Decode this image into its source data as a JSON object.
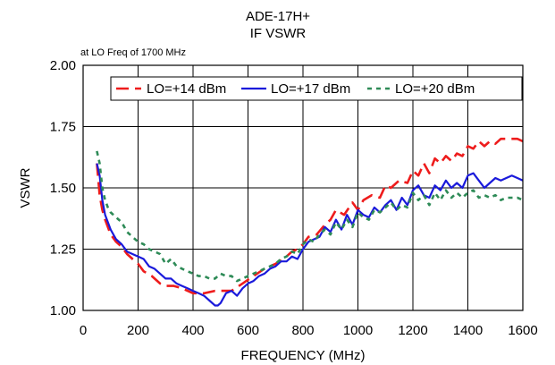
{
  "chart_data": {
    "type": "line",
    "title": [
      "ADE-17H+",
      "IF VSWR"
    ],
    "subtitle": "at LO Freq of 1700 MHz",
    "xlabel": "FREQUENCY (MHz)",
    "ylabel": "VSWR",
    "xlim": [
      0,
      1600
    ],
    "ylim": [
      1.0,
      2.0
    ],
    "x_ticks": [
      0,
      200,
      400,
      600,
      800,
      1000,
      1200,
      1400,
      1600
    ],
    "y_ticks": [
      1.0,
      1.25,
      1.5,
      1.75,
      2.0
    ],
    "x_tick_labels": [
      "0",
      "200",
      "400",
      "600",
      "800",
      "1000",
      "1200",
      "1400",
      "1600"
    ],
    "y_tick_labels": [
      "1.00",
      "1.25",
      "1.50",
      "1.75",
      "2.00"
    ],
    "grid": true,
    "legend_position": "top",
    "series": [
      {
        "name": "LO=+14 dBm",
        "color": "#ee1c1c",
        "dash": "long-dash",
        "x": [
          50,
          60,
          70,
          80,
          90,
          100,
          120,
          140,
          160,
          180,
          200,
          220,
          250,
          280,
          300,
          330,
          360,
          400,
          440,
          480,
          500,
          540,
          580,
          620,
          660,
          700,
          740,
          760,
          780,
          800,
          820,
          850,
          880,
          900,
          920,
          950,
          980,
          1000,
          1020,
          1050,
          1080,
          1100,
          1120,
          1150,
          1180,
          1200,
          1220,
          1240,
          1260,
          1280,
          1300,
          1320,
          1340,
          1360,
          1380,
          1400,
          1420,
          1440,
          1460,
          1480,
          1500,
          1520,
          1540,
          1560,
          1580,
          1600
        ],
        "y": [
          1.6,
          1.47,
          1.41,
          1.37,
          1.34,
          1.31,
          1.28,
          1.26,
          1.23,
          1.21,
          1.19,
          1.16,
          1.14,
          1.11,
          1.1,
          1.1,
          1.09,
          1.07,
          1.07,
          1.08,
          1.08,
          1.08,
          1.11,
          1.14,
          1.17,
          1.19,
          1.22,
          1.24,
          1.25,
          1.27,
          1.3,
          1.31,
          1.35,
          1.37,
          1.41,
          1.39,
          1.44,
          1.41,
          1.45,
          1.47,
          1.46,
          1.51,
          1.5,
          1.53,
          1.52,
          1.57,
          1.55,
          1.6,
          1.56,
          1.62,
          1.6,
          1.63,
          1.61,
          1.64,
          1.63,
          1.67,
          1.66,
          1.69,
          1.67,
          1.69,
          1.68,
          1.7,
          1.7,
          1.7,
          1.7,
          1.69
        ]
      },
      {
        "name": "LO=+17 dBm",
        "color": "#1a1adb",
        "dash": "solid",
        "x": [
          50,
          60,
          70,
          80,
          90,
          100,
          120,
          140,
          160,
          180,
          200,
          220,
          240,
          260,
          280,
          300,
          320,
          340,
          360,
          380,
          400,
          420,
          440,
          460,
          480,
          490,
          500,
          520,
          540,
          560,
          580,
          600,
          620,
          640,
          660,
          680,
          700,
          720,
          740,
          760,
          780,
          800,
          820,
          840,
          860,
          880,
          900,
          920,
          940,
          960,
          980,
          1000,
          1020,
          1040,
          1060,
          1080,
          1100,
          1120,
          1140,
          1160,
          1180,
          1200,
          1220,
          1240,
          1260,
          1280,
          1300,
          1320,
          1340,
          1360,
          1380,
          1400,
          1420,
          1440,
          1460,
          1480,
          1500,
          1520,
          1540,
          1560,
          1580,
          1600
        ],
        "y": [
          1.6,
          1.55,
          1.45,
          1.39,
          1.36,
          1.33,
          1.29,
          1.27,
          1.24,
          1.23,
          1.22,
          1.21,
          1.18,
          1.17,
          1.15,
          1.13,
          1.13,
          1.11,
          1.1,
          1.09,
          1.08,
          1.07,
          1.06,
          1.04,
          1.02,
          1.02,
          1.03,
          1.07,
          1.08,
          1.06,
          1.09,
          1.11,
          1.12,
          1.14,
          1.15,
          1.17,
          1.18,
          1.2,
          1.2,
          1.22,
          1.21,
          1.25,
          1.28,
          1.29,
          1.3,
          1.34,
          1.32,
          1.37,
          1.33,
          1.39,
          1.35,
          1.41,
          1.39,
          1.38,
          1.42,
          1.4,
          1.43,
          1.45,
          1.41,
          1.46,
          1.43,
          1.49,
          1.51,
          1.47,
          1.46,
          1.51,
          1.49,
          1.53,
          1.5,
          1.52,
          1.5,
          1.55,
          1.56,
          1.53,
          1.5,
          1.52,
          1.54,
          1.53,
          1.54,
          1.55,
          1.54,
          1.53
        ]
      },
      {
        "name": "LO=+20 dBm",
        "color": "#2e8b57",
        "dash": "short-dash",
        "x": [
          50,
          60,
          70,
          80,
          90,
          100,
          120,
          140,
          160,
          180,
          200,
          220,
          240,
          260,
          280,
          300,
          320,
          340,
          360,
          380,
          400,
          420,
          440,
          460,
          480,
          500,
          520,
          540,
          560,
          580,
          600,
          620,
          640,
          660,
          680,
          700,
          720,
          740,
          760,
          780,
          800,
          820,
          840,
          860,
          880,
          900,
          920,
          940,
          960,
          980,
          1000,
          1020,
          1040,
          1060,
          1080,
          1100,
          1120,
          1140,
          1160,
          1180,
          1200,
          1220,
          1240,
          1260,
          1280,
          1300,
          1320,
          1340,
          1360,
          1380,
          1400,
          1420,
          1440,
          1460,
          1480,
          1500,
          1520,
          1540,
          1560,
          1580,
          1600
        ],
        "y": [
          1.65,
          1.6,
          1.5,
          1.45,
          1.42,
          1.4,
          1.38,
          1.36,
          1.32,
          1.3,
          1.28,
          1.27,
          1.25,
          1.24,
          1.23,
          1.19,
          1.21,
          1.18,
          1.17,
          1.16,
          1.15,
          1.14,
          1.14,
          1.13,
          1.13,
          1.15,
          1.14,
          1.14,
          1.12,
          1.13,
          1.14,
          1.15,
          1.16,
          1.17,
          1.18,
          1.19,
          1.21,
          1.22,
          1.24,
          1.23,
          1.27,
          1.29,
          1.28,
          1.31,
          1.33,
          1.31,
          1.36,
          1.33,
          1.37,
          1.34,
          1.4,
          1.38,
          1.37,
          1.41,
          1.4,
          1.42,
          1.44,
          1.41,
          1.43,
          1.42,
          1.48,
          1.45,
          1.47,
          1.43,
          1.48,
          1.45,
          1.49,
          1.46,
          1.48,
          1.46,
          1.48,
          1.49,
          1.46,
          1.47,
          1.46,
          1.47,
          1.45,
          1.46,
          1.46,
          1.46,
          1.45
        ]
      }
    ]
  }
}
